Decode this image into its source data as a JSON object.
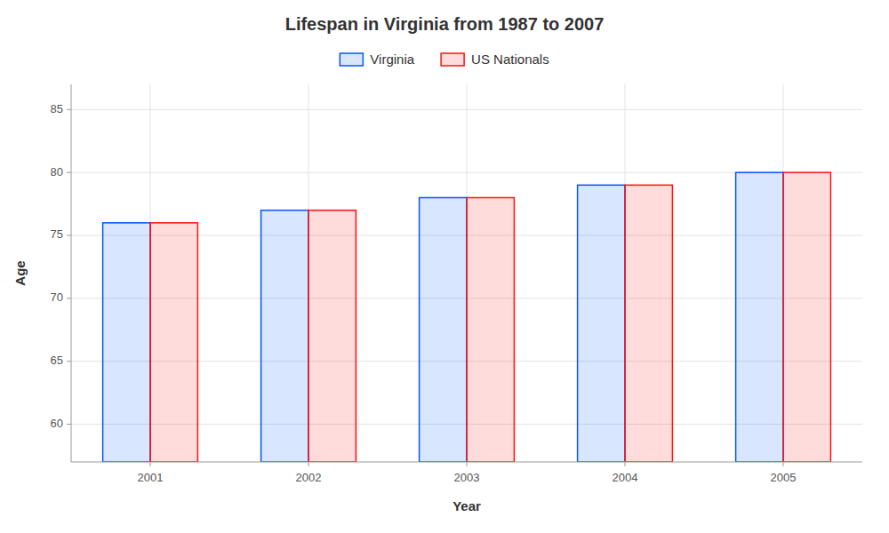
{
  "chart_data": {
    "type": "bar",
    "title": "Lifespan in Virginia from 1987 to 2007",
    "xlabel": "Year",
    "ylabel": "Age",
    "categories": [
      "2001",
      "2002",
      "2003",
      "2004",
      "2005"
    ],
    "series": [
      {
        "name": "Virginia",
        "color": "#0055ff",
        "values": [
          76,
          77,
          78,
          79,
          80
        ]
      },
      {
        "name": "US Nationals",
        "color": "#ff1111",
        "values": [
          76,
          77,
          78,
          79,
          80
        ]
      }
    ],
    "ylim": [
      57,
      87
    ],
    "yticks": [
      60,
      65,
      70,
      75,
      80,
      85
    ],
    "grid": true,
    "legend": "top"
  }
}
